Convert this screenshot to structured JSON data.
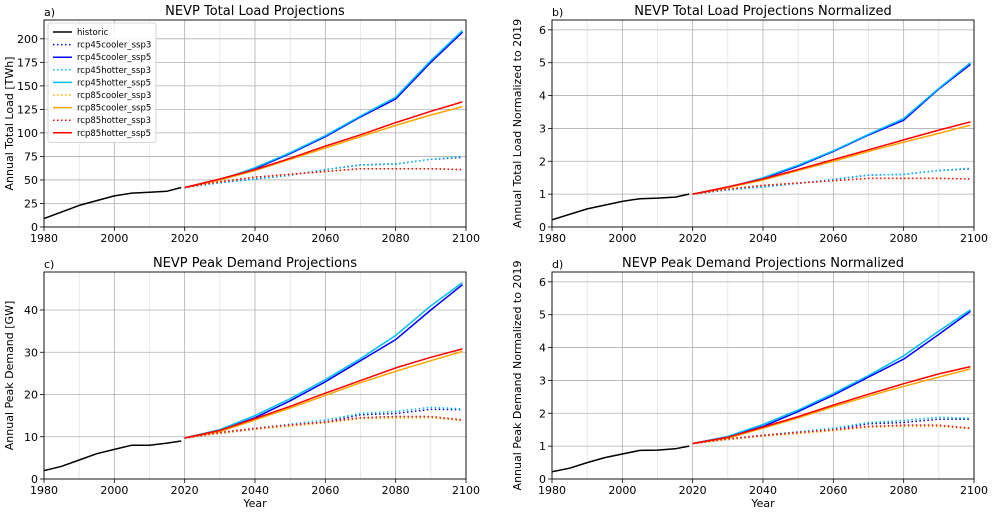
{
  "figure": {
    "background": "#ffffff"
  },
  "series_defs": [
    {
      "name": "historic",
      "color": "#000000",
      "dash": "solid"
    },
    {
      "name": "rcp45cooler_ssp3",
      "color": "#0000ff",
      "dash": "dotted"
    },
    {
      "name": "rcp45cooler_ssp5",
      "color": "#0000ff",
      "dash": "solid"
    },
    {
      "name": "rcp45hotter_ssp3",
      "color": "#00bfff",
      "dash": "dotted"
    },
    {
      "name": "rcp45hotter_ssp5",
      "color": "#00bfff",
      "dash": "solid"
    },
    {
      "name": "rcp85cooler_ssp3",
      "color": "#ffa500",
      "dash": "dotted"
    },
    {
      "name": "rcp85cooler_ssp5",
      "color": "#ffa500",
      "dash": "solid"
    },
    {
      "name": "rcp85hotter_ssp3",
      "color": "#ff0000",
      "dash": "dotted"
    },
    {
      "name": "rcp85hotter_ssp5",
      "color": "#ff0000",
      "dash": "solid"
    }
  ],
  "chart_data": [
    {
      "type": "line",
      "panel_label": "a)",
      "title": "NEVP Total Load Projections",
      "xlabel": "",
      "ylabel": "Annual Total Load [TWh]",
      "xlim": [
        1980,
        2100
      ],
      "ylim": [
        0,
        220
      ],
      "xticks": [
        1980,
        2000,
        2020,
        2040,
        2060,
        2080,
        2100
      ],
      "yticks": [
        0,
        25,
        50,
        75,
        100,
        125,
        150,
        175,
        200
      ],
      "grid": true,
      "legend": "top-left",
      "series": [
        {
          "name": "historic",
          "x": [
            1980,
            1990,
            2000,
            2005,
            2010,
            2015,
            2019
          ],
          "values": [
            9,
            23,
            33,
            36,
            37,
            38,
            42
          ]
        },
        {
          "name": "rcp45cooler_ssp3",
          "x": [
            2020,
            2030,
            2040,
            2050,
            2060,
            2070,
            2080,
            2090,
            2099
          ],
          "values": [
            42,
            47,
            51,
            55,
            61,
            66,
            67,
            72,
            74
          ]
        },
        {
          "name": "rcp45cooler_ssp5",
          "x": [
            2020,
            2030,
            2040,
            2050,
            2060,
            2070,
            2080,
            2090,
            2099
          ],
          "values": [
            42,
            50,
            62,
            78,
            96,
            117,
            136,
            175,
            207
          ]
        },
        {
          "name": "rcp45hotter_ssp3",
          "x": [
            2020,
            2030,
            2040,
            2050,
            2060,
            2070,
            2080,
            2090,
            2099
          ],
          "values": [
            42,
            47,
            51,
            55,
            61,
            66,
            67,
            72,
            75
          ]
        },
        {
          "name": "rcp45hotter_ssp5",
          "x": [
            2020,
            2030,
            2040,
            2050,
            2060,
            2070,
            2080,
            2090,
            2099
          ],
          "values": [
            42,
            50,
            63,
            79,
            97,
            118,
            138,
            177,
            209
          ]
        },
        {
          "name": "rcp85cooler_ssp3",
          "x": [
            2020,
            2030,
            2040,
            2050,
            2060,
            2070,
            2080,
            2090,
            2099
          ],
          "values": [
            42,
            48,
            53,
            56,
            59,
            62,
            62,
            62,
            61
          ]
        },
        {
          "name": "rcp85cooler_ssp5",
          "x": [
            2020,
            2030,
            2040,
            2050,
            2060,
            2070,
            2080,
            2090,
            2099
          ],
          "values": [
            42,
            50,
            60,
            72,
            84,
            96,
            108,
            119,
            128
          ]
        },
        {
          "name": "rcp85hotter_ssp3",
          "x": [
            2020,
            2030,
            2040,
            2050,
            2060,
            2070,
            2080,
            2090,
            2099
          ],
          "values": [
            42,
            48,
            53,
            56,
            59,
            62,
            62,
            62,
            61
          ]
        },
        {
          "name": "rcp85hotter_ssp5",
          "x": [
            2020,
            2030,
            2040,
            2050,
            2060,
            2070,
            2080,
            2090,
            2099
          ],
          "values": [
            42,
            51,
            61,
            73,
            86,
            98,
            111,
            123,
            133
          ]
        }
      ]
    },
    {
      "type": "line",
      "panel_label": "b)",
      "title": "NEVP Total Load Projections Normalized",
      "xlabel": "",
      "ylabel": "Annual Total Load Normalized to 2019",
      "xlim": [
        1980,
        2100
      ],
      "ylim": [
        0,
        6.3
      ],
      "xticks": [
        1980,
        2000,
        2020,
        2040,
        2060,
        2080,
        2100
      ],
      "yticks": [
        0,
        1,
        2,
        3,
        4,
        5,
        6
      ],
      "grid": true,
      "legend": "none",
      "series": [
        {
          "name": "historic",
          "x": [
            1980,
            1990,
            2000,
            2005,
            2010,
            2015,
            2019
          ],
          "values": [
            0.22,
            0.55,
            0.78,
            0.86,
            0.88,
            0.91,
            1.0
          ]
        },
        {
          "name": "rcp45cooler_ssp3",
          "x": [
            2020,
            2030,
            2040,
            2050,
            2060,
            2070,
            2080,
            2090,
            2099
          ],
          "values": [
            1.0,
            1.13,
            1.22,
            1.33,
            1.45,
            1.58,
            1.6,
            1.72,
            1.77
          ]
        },
        {
          "name": "rcp45cooler_ssp5",
          "x": [
            2020,
            2030,
            2040,
            2050,
            2060,
            2070,
            2080,
            2090,
            2099
          ],
          "values": [
            1.0,
            1.2,
            1.48,
            1.85,
            2.3,
            2.8,
            3.25,
            4.2,
            4.95
          ]
        },
        {
          "name": "rcp45hotter_ssp3",
          "x": [
            2020,
            2030,
            2040,
            2050,
            2060,
            2070,
            2080,
            2090,
            2099
          ],
          "values": [
            1.0,
            1.13,
            1.22,
            1.33,
            1.45,
            1.58,
            1.6,
            1.72,
            1.79
          ]
        },
        {
          "name": "rcp45hotter_ssp5",
          "x": [
            2020,
            2030,
            2040,
            2050,
            2060,
            2070,
            2080,
            2090,
            2099
          ],
          "values": [
            1.0,
            1.2,
            1.5,
            1.88,
            2.32,
            2.82,
            3.3,
            4.22,
            5.0
          ]
        },
        {
          "name": "rcp85cooler_ssp3",
          "x": [
            2020,
            2030,
            2040,
            2050,
            2060,
            2070,
            2080,
            2090,
            2099
          ],
          "values": [
            1.0,
            1.15,
            1.27,
            1.34,
            1.41,
            1.48,
            1.48,
            1.48,
            1.46
          ]
        },
        {
          "name": "rcp85cooler_ssp5",
          "x": [
            2020,
            2030,
            2040,
            2050,
            2060,
            2070,
            2080,
            2090,
            2099
          ],
          "values": [
            1.0,
            1.2,
            1.43,
            1.72,
            2.0,
            2.3,
            2.58,
            2.85,
            3.1
          ]
        },
        {
          "name": "rcp85hotter_ssp3",
          "x": [
            2020,
            2030,
            2040,
            2050,
            2060,
            2070,
            2080,
            2090,
            2099
          ],
          "values": [
            1.0,
            1.15,
            1.27,
            1.34,
            1.41,
            1.48,
            1.48,
            1.48,
            1.46
          ]
        },
        {
          "name": "rcp85hotter_ssp5",
          "x": [
            2020,
            2030,
            2040,
            2050,
            2060,
            2070,
            2080,
            2090,
            2099
          ],
          "values": [
            1.0,
            1.22,
            1.46,
            1.75,
            2.05,
            2.35,
            2.65,
            2.95,
            3.2
          ]
        }
      ]
    },
    {
      "type": "line",
      "panel_label": "c)",
      "title": "NEVP Peak Demand Projections",
      "xlabel": "Year",
      "ylabel": "Annual Peak Demand [GW]",
      "xlim": [
        1980,
        2100
      ],
      "ylim": [
        0,
        49
      ],
      "xticks": [
        1980,
        2000,
        2020,
        2040,
        2060,
        2080,
        2100
      ],
      "yticks": [
        0,
        10,
        20,
        30,
        40
      ],
      "grid": true,
      "legend": "none",
      "series": [
        {
          "name": "historic",
          "x": [
            1980,
            1985,
            1990,
            1995,
            2000,
            2005,
            2010,
            2015,
            2019
          ],
          "values": [
            2,
            3,
            4.5,
            6,
            7,
            8,
            8,
            8.5,
            9
          ]
        },
        {
          "name": "rcp45cooler_ssp3",
          "x": [
            2020,
            2030,
            2040,
            2050,
            2060,
            2070,
            2080,
            2090,
            2099
          ],
          "values": [
            9.7,
            10.8,
            11.8,
            12.7,
            13.5,
            15.2,
            15.5,
            16.5,
            16.4
          ]
        },
        {
          "name": "rcp45cooler_ssp5",
          "x": [
            2020,
            2030,
            2040,
            2050,
            2060,
            2070,
            2080,
            2090,
            2099
          ],
          "values": [
            9.7,
            11.5,
            14.5,
            18.5,
            23,
            28,
            33,
            40,
            46
          ]
        },
        {
          "name": "rcp45hotter_ssp3",
          "x": [
            2020,
            2030,
            2040,
            2050,
            2060,
            2070,
            2080,
            2090,
            2099
          ],
          "values": [
            9.7,
            11,
            12,
            13,
            14,
            15.5,
            16,
            17,
            16.6
          ]
        },
        {
          "name": "rcp45hotter_ssp5",
          "x": [
            2020,
            2030,
            2040,
            2050,
            2060,
            2070,
            2080,
            2090,
            2099
          ],
          "values": [
            9.7,
            11.7,
            15,
            19,
            23.5,
            28.5,
            34,
            41,
            46.5
          ]
        },
        {
          "name": "rcp85cooler_ssp3",
          "x": [
            2020,
            2030,
            2040,
            2050,
            2060,
            2070,
            2080,
            2090,
            2099
          ],
          "values": [
            9.7,
            10.8,
            11.8,
            12.5,
            13.3,
            14.3,
            14.4,
            14.5,
            13.8
          ]
        },
        {
          "name": "rcp85cooler_ssp5",
          "x": [
            2020,
            2030,
            2040,
            2050,
            2060,
            2070,
            2080,
            2090,
            2099
          ],
          "values": [
            9.7,
            11.2,
            14,
            16.8,
            19.8,
            22.8,
            25.5,
            28,
            30.2
          ]
        },
        {
          "name": "rcp85hotter_ssp3",
          "x": [
            2020,
            2030,
            2040,
            2050,
            2060,
            2070,
            2080,
            2090,
            2099
          ],
          "values": [
            9.7,
            11,
            12,
            12.8,
            13.5,
            14.5,
            14.8,
            14.8,
            14
          ]
        },
        {
          "name": "rcp85hotter_ssp5",
          "x": [
            2020,
            2030,
            2040,
            2050,
            2060,
            2070,
            2080,
            2090,
            2099
          ],
          "values": [
            9.7,
            11.5,
            14.3,
            17.2,
            20.3,
            23.3,
            26.3,
            28.8,
            30.8
          ]
        }
      ]
    },
    {
      "type": "line",
      "panel_label": "d)",
      "title": "NEVP Peak Demand Projections Normalized",
      "xlabel": "Year",
      "ylabel": "Annual Peak Demand Normalized to 2019",
      "xlim": [
        1980,
        2100
      ],
      "ylim": [
        0,
        6.3
      ],
      "xticks": [
        1980,
        2000,
        2020,
        2040,
        2060,
        2080,
        2100
      ],
      "yticks": [
        0,
        1,
        2,
        3,
        4,
        5,
        6
      ],
      "grid": true,
      "legend": "none",
      "series": [
        {
          "name": "historic",
          "x": [
            1980,
            1985,
            1990,
            1995,
            2000,
            2005,
            2010,
            2015,
            2019
          ],
          "values": [
            0.22,
            0.33,
            0.5,
            0.65,
            0.76,
            0.87,
            0.88,
            0.92,
            1.0
          ]
        },
        {
          "name": "rcp45cooler_ssp3",
          "x": [
            2020,
            2030,
            2040,
            2050,
            2060,
            2070,
            2080,
            2090,
            2099
          ],
          "values": [
            1.08,
            1.2,
            1.32,
            1.42,
            1.5,
            1.68,
            1.72,
            1.82,
            1.82
          ]
        },
        {
          "name": "rcp45cooler_ssp5",
          "x": [
            2020,
            2030,
            2040,
            2050,
            2060,
            2070,
            2080,
            2090,
            2099
          ],
          "values": [
            1.08,
            1.28,
            1.6,
            2.05,
            2.55,
            3.1,
            3.65,
            4.4,
            5.1
          ]
        },
        {
          "name": "rcp45hotter_ssp3",
          "x": [
            2020,
            2030,
            2040,
            2050,
            2060,
            2070,
            2080,
            2090,
            2099
          ],
          "values": [
            1.08,
            1.22,
            1.33,
            1.44,
            1.55,
            1.72,
            1.78,
            1.88,
            1.85
          ]
        },
        {
          "name": "rcp45hotter_ssp5",
          "x": [
            2020,
            2030,
            2040,
            2050,
            2060,
            2070,
            2080,
            2090,
            2099
          ],
          "values": [
            1.08,
            1.3,
            1.66,
            2.1,
            2.6,
            3.15,
            3.75,
            4.5,
            5.15
          ]
        },
        {
          "name": "rcp85cooler_ssp3",
          "x": [
            2020,
            2030,
            2040,
            2050,
            2060,
            2070,
            2080,
            2090,
            2099
          ],
          "values": [
            1.08,
            1.2,
            1.3,
            1.38,
            1.47,
            1.58,
            1.6,
            1.6,
            1.53
          ]
        },
        {
          "name": "rcp85cooler_ssp5",
          "x": [
            2020,
            2030,
            2040,
            2050,
            2060,
            2070,
            2080,
            2090,
            2099
          ],
          "values": [
            1.08,
            1.24,
            1.55,
            1.86,
            2.2,
            2.52,
            2.82,
            3.1,
            3.35
          ]
        },
        {
          "name": "rcp85hotter_ssp3",
          "x": [
            2020,
            2030,
            2040,
            2050,
            2060,
            2070,
            2080,
            2090,
            2099
          ],
          "values": [
            1.08,
            1.22,
            1.33,
            1.42,
            1.5,
            1.6,
            1.64,
            1.64,
            1.55
          ]
        },
        {
          "name": "rcp85hotter_ssp5",
          "x": [
            2020,
            2030,
            2040,
            2050,
            2060,
            2070,
            2080,
            2090,
            2099
          ],
          "values": [
            1.08,
            1.27,
            1.58,
            1.9,
            2.25,
            2.58,
            2.9,
            3.2,
            3.42
          ]
        }
      ]
    }
  ]
}
